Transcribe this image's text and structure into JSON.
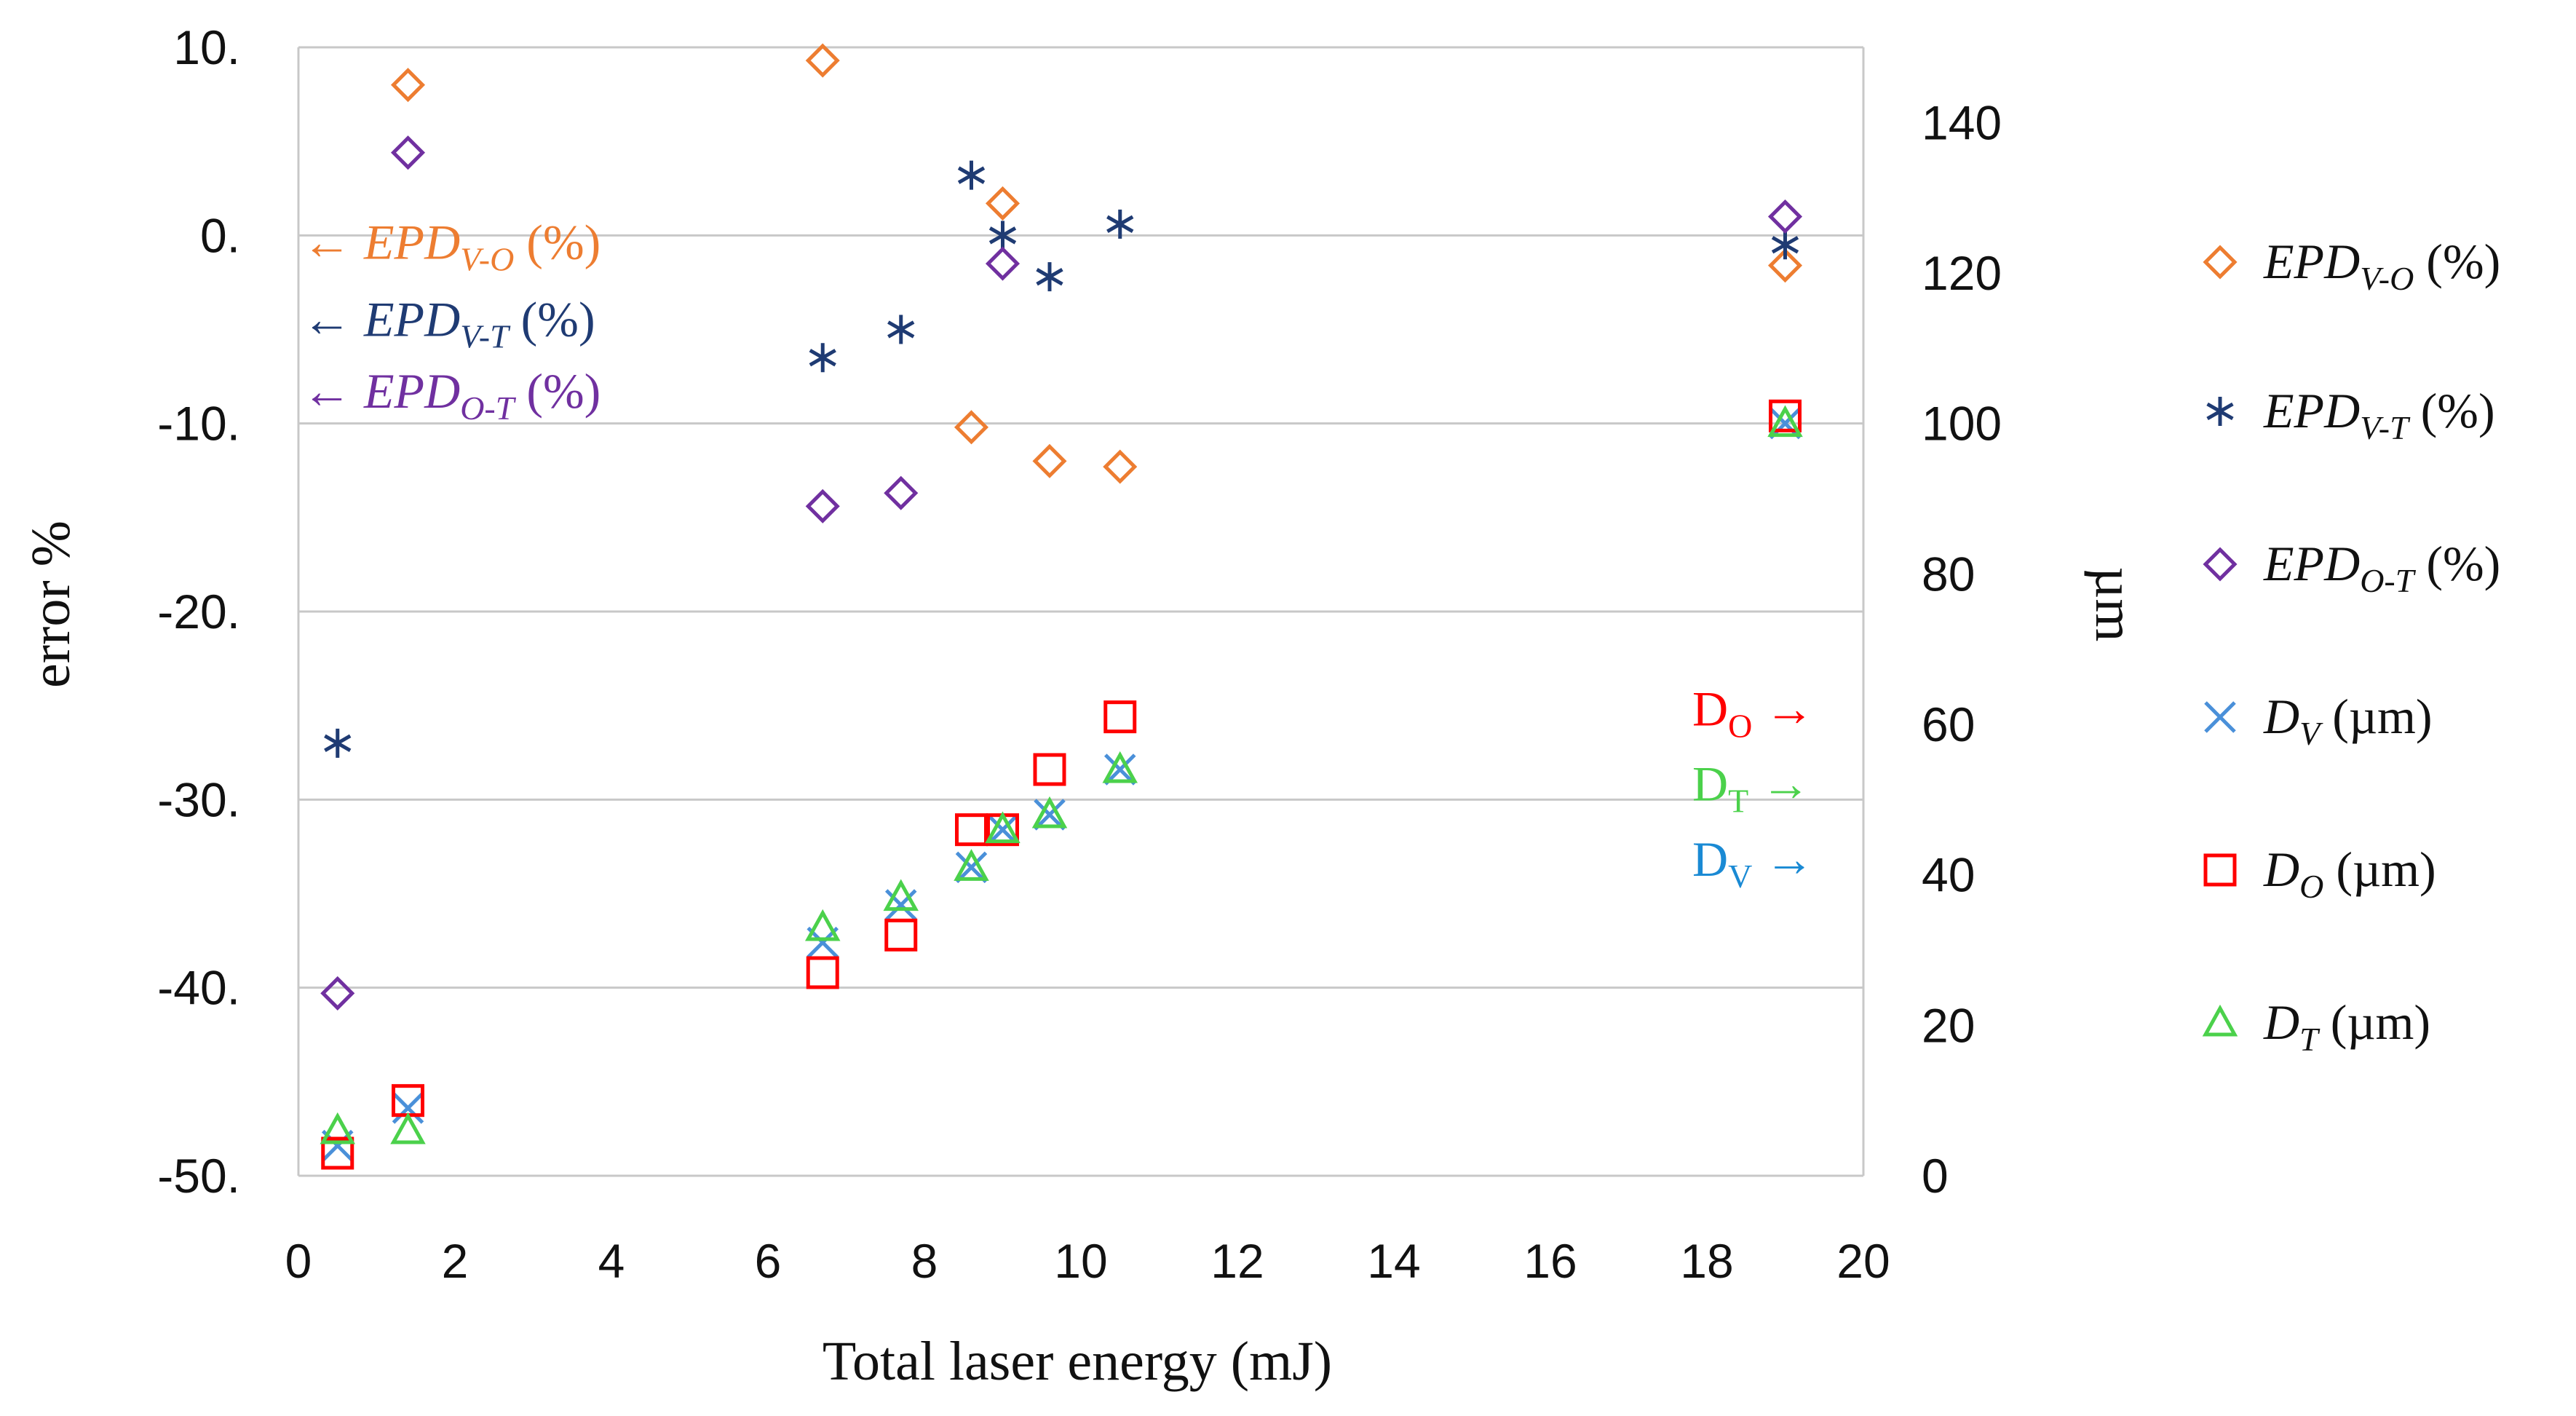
{
  "chart_data": {
    "type": "scatter",
    "xlabel": "Total laser energy (mJ)",
    "ylabel": "error %",
    "y2label": "µm",
    "xlim": [
      0,
      20
    ],
    "ylim": [
      -50,
      10
    ],
    "y2lim": [
      0,
      150
    ],
    "xticks": [
      "0",
      "2",
      "4",
      "6",
      "8",
      "10",
      "12",
      "14",
      "16",
      "18",
      "20"
    ],
    "yticks": [
      "-50.",
      "-40.",
      "-30.",
      "-20.",
      "-10.",
      "0.",
      "10."
    ],
    "y2ticks": [
      "0",
      "20",
      "40",
      "60",
      "80",
      "100",
      "120",
      "140"
    ],
    "gridlines": "horizontal",
    "series": [
      {
        "key": "vo",
        "name": "EPD",
        "sub": "V-O",
        "unit": "(%)",
        "axis": "left",
        "marker": "diamond",
        "color": "#ed7d31",
        "legend_italic": true,
        "points": [
          [
            1.4,
            8.0
          ],
          [
            6.7,
            9.3
          ],
          [
            8.6,
            -10.2
          ],
          [
            9.0,
            1.7
          ],
          [
            9.6,
            -12.0
          ],
          [
            10.5,
            -12.3
          ],
          [
            19.0,
            -1.6
          ]
        ]
      },
      {
        "key": "vt",
        "name": "EPD",
        "sub": "V-T",
        "unit": "(%)",
        "axis": "left",
        "marker": "asterisk",
        "color": "#1f3b73",
        "legend_italic": true,
        "points": [
          [
            0.5,
            -27.0
          ],
          [
            6.7,
            -6.5
          ],
          [
            7.7,
            -5.0
          ],
          [
            8.6,
            3.2
          ],
          [
            9.0,
            0.0
          ],
          [
            9.6,
            -2.2
          ],
          [
            10.5,
            0.6
          ],
          [
            19.0,
            -0.5
          ]
        ]
      },
      {
        "key": "ot",
        "name": "EPD",
        "sub": "O-T",
        "unit": "(%)",
        "axis": "left",
        "marker": "diamond",
        "color": "#7030a0",
        "legend_italic": true,
        "points": [
          [
            0.5,
            -40.3
          ],
          [
            1.4,
            4.4
          ],
          [
            6.7,
            -14.4
          ],
          [
            7.7,
            -13.7
          ],
          [
            9.0,
            -1.5
          ],
          [
            19.0,
            1.0
          ]
        ]
      },
      {
        "key": "dv",
        "name": "D",
        "sub": "V",
        "unit": "(µm)",
        "axis": "right",
        "marker": "cross",
        "color": "#4a90d9",
        "legend_italic": true,
        "points": [
          [
            0.5,
            4
          ],
          [
            1.4,
            9
          ],
          [
            6.7,
            31
          ],
          [
            7.7,
            36
          ],
          [
            8.6,
            41
          ],
          [
            9.0,
            46
          ],
          [
            9.6,
            48
          ],
          [
            10.5,
            54
          ],
          [
            19.0,
            100
          ]
        ]
      },
      {
        "key": "do",
        "name": "D",
        "sub": "O",
        "unit": "(µm)",
        "axis": "right",
        "marker": "square",
        "color": "#ff0000",
        "legend_italic": true,
        "points": [
          [
            0.5,
            3
          ],
          [
            1.4,
            10
          ],
          [
            6.7,
            27
          ],
          [
            7.7,
            32
          ],
          [
            8.6,
            46
          ],
          [
            9.0,
            46
          ],
          [
            9.6,
            54
          ],
          [
            10.5,
            61
          ],
          [
            19.0,
            101
          ]
        ]
      },
      {
        "key": "dt",
        "name": "D",
        "sub": "T",
        "unit": "(µm)",
        "axis": "right",
        "marker": "triangle",
        "color": "#4bd14b",
        "legend_italic": true,
        "points": [
          [
            0.5,
            6
          ],
          [
            1.4,
            6
          ],
          [
            6.7,
            33
          ],
          [
            7.7,
            37
          ],
          [
            8.6,
            41
          ],
          [
            9.0,
            46
          ],
          [
            9.6,
            48
          ],
          [
            10.5,
            54
          ],
          [
            19.0,
            100
          ]
        ]
      }
    ],
    "annotations": [
      {
        "series": "vo",
        "name": "EPD",
        "sub": "V-O",
        "unit": "(%)",
        "arrow": "←",
        "color": "#ed7d31",
        "side": "left"
      },
      {
        "series": "vt",
        "name": "EPD",
        "sub": "V-T",
        "unit": "(%)",
        "arrow": "←",
        "color": "#1f3b73",
        "side": "left"
      },
      {
        "series": "ot",
        "name": "EPD",
        "sub": "O-T",
        "unit": "(%)",
        "arrow": "←",
        "color": "#7030a0",
        "side": "left"
      },
      {
        "series": "do",
        "name": "D",
        "sub": "O",
        "arrow": "→",
        "color": "#ff0000",
        "side": "right"
      },
      {
        "series": "dt",
        "name": "D",
        "sub": "T",
        "arrow": "→",
        "color": "#4bd14b",
        "side": "right"
      },
      {
        "series": "dv",
        "name": "D",
        "sub": "V",
        "arrow": "→",
        "color": "#1a8ad4",
        "side": "right"
      }
    ]
  }
}
